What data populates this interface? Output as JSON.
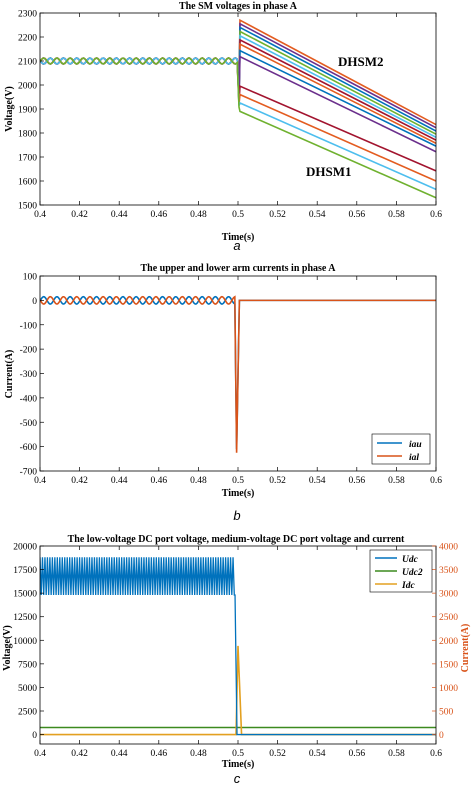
{
  "chart_data": [
    {
      "type": "line",
      "title": "The SM voltages in phase A",
      "xlabel": "Time(s)",
      "ylabel": "Voltage(V)",
      "xlim": [
        0.4,
        0.6
      ],
      "ylim": [
        1500,
        2300
      ],
      "xticks": [
        "0.4",
        "0.42",
        "0.44",
        "0.46",
        "0.48",
        "0.5",
        "0.52",
        "0.54",
        "0.56",
        "0.58",
        "0.6"
      ],
      "yticks": [
        "1500",
        "1600",
        "1700",
        "1800",
        "1900",
        "2000",
        "2100",
        "2200",
        "2300"
      ],
      "grid": false,
      "caption": "a",
      "annotations": [
        {
          "text": "DHSM2",
          "x": 0.551,
          "y": 2182
        },
        {
          "text": "DHSM1",
          "x": 0.535,
          "y": 1630
        }
      ],
      "oscillation": {
        "before_t": 0.5,
        "center": 2100,
        "amplitude": 12,
        "period": 0.00667
      },
      "series": [
        {
          "group": "DHSM2",
          "color": "#e35c20",
          "start": [
            0.5,
            2270
          ],
          "end": [
            0.6,
            1835
          ]
        },
        {
          "group": "DHSM2",
          "color": "#6b2f8c",
          "start": [
            0.5,
            2255
          ],
          "end": [
            0.6,
            1822
          ]
        },
        {
          "group": "DHSM2",
          "color": "#0072bd",
          "start": [
            0.5,
            2240
          ],
          "end": [
            0.6,
            1808
          ]
        },
        {
          "group": "DHSM2",
          "color": "#6fb12f",
          "start": [
            0.5,
            2223
          ],
          "end": [
            0.6,
            1795
          ]
        },
        {
          "group": "DHSM2",
          "color": "#4dbeee",
          "start": [
            0.5,
            2205
          ],
          "end": [
            0.6,
            1782
          ]
        },
        {
          "group": "DHSM2",
          "color": "#a2142f",
          "start": [
            0.5,
            2188
          ],
          "end": [
            0.6,
            1770
          ]
        },
        {
          "group": "DHSM2",
          "color": "#e35c20",
          "start": [
            0.5,
            2170
          ],
          "end": [
            0.6,
            1757
          ]
        },
        {
          "group": "DHSM2",
          "color": "#0072bd",
          "start": [
            0.5,
            2143
          ],
          "end": [
            0.6,
            1745
          ]
        },
        {
          "group": "DHSM2",
          "color": "#6b2f8c",
          "start": [
            0.5,
            2118
          ],
          "end": [
            0.6,
            1722
          ]
        },
        {
          "group": "DHSM1",
          "color": "#a2142f",
          "start": [
            0.5,
            1995
          ],
          "end": [
            0.6,
            1642
          ]
        },
        {
          "group": "DHSM1",
          "color": "#e35c20",
          "start": [
            0.5,
            1960
          ],
          "end": [
            0.6,
            1600
          ]
        },
        {
          "group": "DHSM1",
          "color": "#4dbeee",
          "start": [
            0.5,
            1925
          ],
          "end": [
            0.6,
            1565
          ]
        },
        {
          "group": "DHSM1",
          "color": "#6fb12f",
          "start": [
            0.5,
            1890
          ],
          "end": [
            0.6,
            1530
          ]
        }
      ]
    },
    {
      "type": "line",
      "title": "The upper and lower arm currents in phase A",
      "xlabel": "Time(s)",
      "ylabel": "Current(A)",
      "xlim": [
        0.4,
        0.6
      ],
      "ylim": [
        -700,
        100
      ],
      "xticks": [
        "0.4",
        "0.42",
        "0.44",
        "0.46",
        "0.48",
        "0.5",
        "0.52",
        "0.54",
        "0.56",
        "0.58",
        "0.6"
      ],
      "yticks": [
        "-700",
        "-600",
        "-500",
        "-400",
        "-300",
        "-200",
        "-100",
        "0",
        "100"
      ],
      "grid": false,
      "caption": "b",
      "legend": {
        "position": "bottom-right"
      },
      "series": [
        {
          "name": "iau",
          "color": "#0072bd",
          "amplitude": 15,
          "period": 0.00667,
          "phase": 0,
          "fault_t": 0.4985,
          "min": -610
        },
        {
          "name": "ial",
          "color": "#d95319",
          "amplitude": 15,
          "period": 0.00667,
          "phase": 3.14159,
          "fault_t": 0.4985,
          "min": -625
        }
      ]
    },
    {
      "type": "line",
      "title": "The low-voltage DC port voltage, medium-voltage DC port voltage and current",
      "xlabel": "Time(s)",
      "ylabel": "Voltage(V)",
      "ylabel_right": "Current(A)",
      "xlim": [
        0.4,
        0.6
      ],
      "ylim": [
        -1000,
        20000
      ],
      "ylim_right": [
        -200,
        4000
      ],
      "xticks": [
        "0.4",
        "0.42",
        "0.44",
        "0.46",
        "0.48",
        "0.5",
        "0.52",
        "0.54",
        "0.56",
        "0.58",
        "0.6"
      ],
      "yticks": [
        "0",
        "2500",
        "5000",
        "7500",
        "10000",
        "12500",
        "15000",
        "17500",
        "20000"
      ],
      "yticks_right": [
        "0",
        "500",
        "1000",
        "1500",
        "2000",
        "2500",
        "3000",
        "3500",
        "4000"
      ],
      "grid": false,
      "caption": "c",
      "legend": {
        "position": "top-right"
      },
      "series": [
        {
          "name": "Udc",
          "axis": "left",
          "color": "#0072bd",
          "high": 18800,
          "low": 14800,
          "period": 0.0025,
          "end_t": 0.4985
        },
        {
          "name": "Udc2",
          "axis": "left",
          "color": "#3c8a1f",
          "value": 750
        },
        {
          "name": "Idc",
          "axis": "right",
          "color": "#e3a020",
          "base": 0,
          "spike_t": 0.5,
          "peak": 1880
        }
      ]
    }
  ]
}
